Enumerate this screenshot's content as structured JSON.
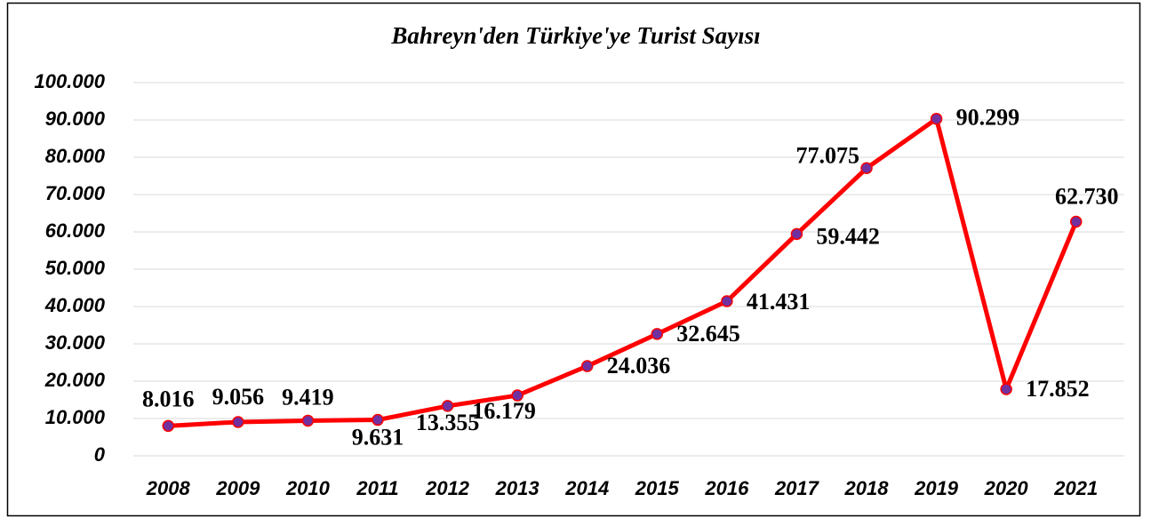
{
  "chart_data": {
    "type": "line",
    "title": "Bahreyn'den Türkiye'ye Turist Sayısı",
    "categories": [
      "2008",
      "2009",
      "2010",
      "2011",
      "2012",
      "2013",
      "2014",
      "2015",
      "2016",
      "2017",
      "2018",
      "2019",
      "2020",
      "2021"
    ],
    "series": [
      {
        "name": "Turist Sayısı",
        "color": "#ff0000",
        "marker_color": "#7030a0",
        "values": [
          8016,
          9056,
          9419,
          9631,
          13355,
          16179,
          24036,
          32645,
          41431,
          59442,
          77075,
          90299,
          17852,
          62730
        ],
        "value_labels": [
          "8.016",
          "9.056",
          "9.419",
          "9.631",
          "13.355",
          "16.179",
          "24.036",
          "32.645",
          "41.431",
          "59.442",
          "77.075",
          "90.299",
          "17.852",
          "62.730"
        ]
      }
    ],
    "ylim": [
      0,
      100000
    ],
    "yticks": [
      0,
      {
        "value": 10000,
        "label": "10.000"
      },
      {
        "value": 20000,
        "label": "20.000"
      },
      {
        "value": 30000,
        "label": "30.000"
      },
      {
        "value": 40000,
        "label": "40.000"
      },
      {
        "value": 50000,
        "label": "50.000"
      },
      {
        "value": 60000,
        "label": "60.000"
      },
      {
        "value": 70000,
        "label": "70.000"
      },
      {
        "value": 80000,
        "label": "80.000"
      },
      {
        "value": 90000,
        "label": "90.000"
      },
      {
        "value": 100000,
        "label": "100.000"
      }
    ],
    "grid": true
  }
}
